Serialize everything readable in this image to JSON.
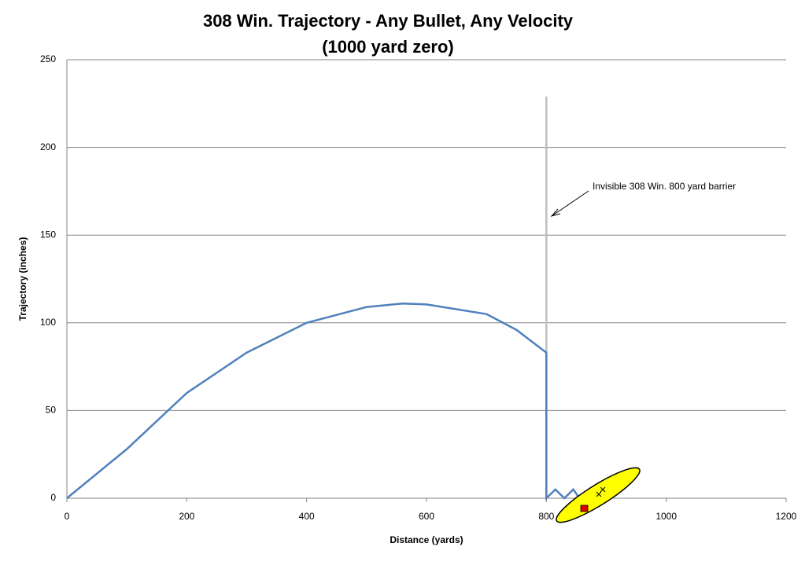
{
  "chart_data": {
    "type": "line",
    "title": "308 Win. Trajectory - Any Bullet, Any Velocity",
    "subtitle": "(1000 yard zero)",
    "x_label": "Distance (yards)",
    "y_label": "Trajectory (inches)",
    "annotation": "Invisible 308 Win. 800 yard barrier",
    "series": [
      {
        "color": "#4f81bd",
        "x": [
          0,
          100,
          200,
          300,
          400,
          500,
          560,
          600,
          700,
          750,
          800,
          800,
          815,
          830,
          845,
          855
        ],
        "values": [
          0,
          28,
          60,
          83,
          100,
          109,
          111,
          110.5,
          105,
          96,
          83,
          0,
          5,
          0,
          5,
          0
        ]
      },
      {
        "color": "#bfbfbf",
        "x": [
          800,
          800
        ],
        "values": [
          0,
          229
        ]
      }
    ],
    "xlim": [
      0,
      1200
    ],
    "xticks": [
      0,
      200,
      400,
      600,
      800,
      1000,
      1200
    ],
    "ylim": [
      0,
      250
    ],
    "yticks": [
      0,
      50,
      100,
      150,
      200,
      250
    ],
    "grid": true
  }
}
